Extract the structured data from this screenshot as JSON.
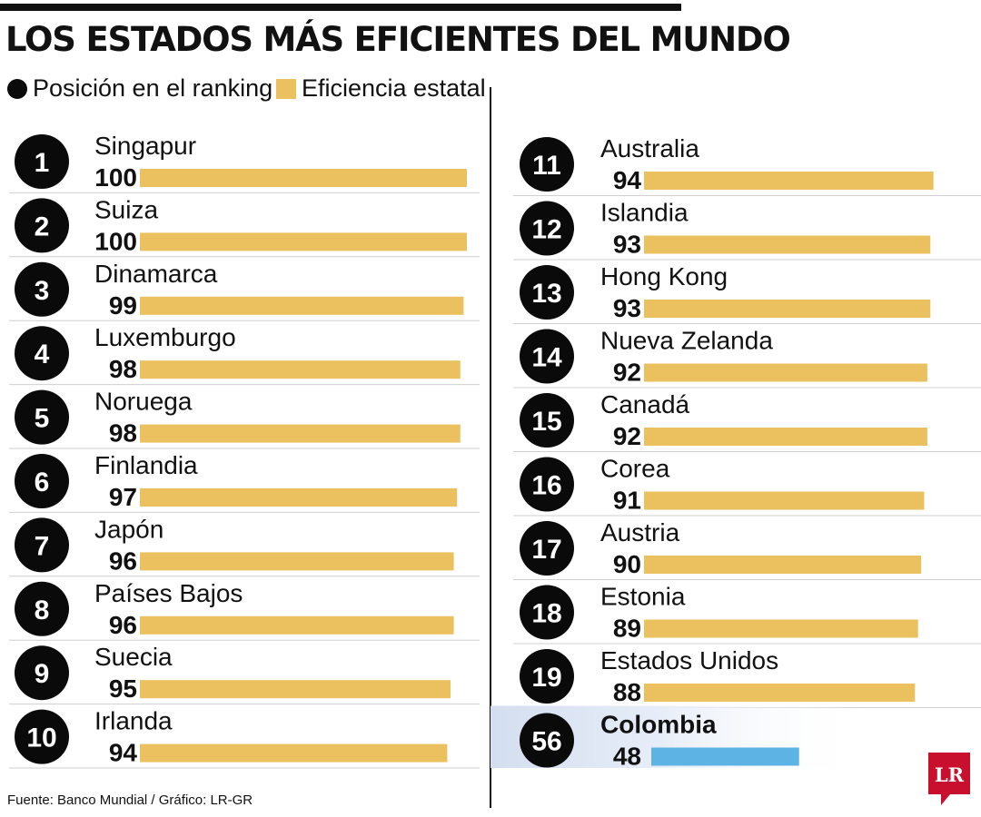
{
  "title": "LOS ESTADOS MÁS EFICIENTES DEL MUNDO",
  "legend": {
    "rank_label": "Posición en el ranking",
    "efficiency_label": "Eficiencia estatal"
  },
  "colors": {
    "bar": "#ebc15f",
    "highlight_bar": "#5db4e4",
    "badge": "#0a0a0a",
    "badge_text": "#ffffff",
    "separator": "#cfcfcf",
    "highlight_bg": "#d3def0",
    "logo": "#c8102e"
  },
  "chart_data": {
    "type": "bar",
    "orientation": "horizontal",
    "title": "LOS ESTADOS MÁS EFICIENTES DEL MUNDO",
    "series_label": "Eficiencia estatal",
    "xlim": [
      0,
      100
    ],
    "items": [
      {
        "rank": "1",
        "country": "Singapur",
        "value": 100
      },
      {
        "rank": "2",
        "country": "Suiza",
        "value": 100
      },
      {
        "rank": "3",
        "country": "Dinamarca",
        "value": 99
      },
      {
        "rank": "4",
        "country": "Luxemburgo",
        "value": 98
      },
      {
        "rank": "5",
        "country": "Noruega",
        "value": 98
      },
      {
        "rank": "6",
        "country": "Finlandia",
        "value": 97
      },
      {
        "rank": "7",
        "country": "Japón",
        "value": 96
      },
      {
        "rank": "8",
        "country": "Países Bajos",
        "value": 96
      },
      {
        "rank": "9",
        "country": "Suecia",
        "value": 95
      },
      {
        "rank": "10",
        "country": "Irlanda",
        "value": 94
      },
      {
        "rank": "11",
        "country": "Australia",
        "value": 94
      },
      {
        "rank": "12",
        "country": "Islandia",
        "value": 93
      },
      {
        "rank": "13",
        "country": "Hong Kong",
        "value": 93
      },
      {
        "rank": "14",
        "country": "Nueva Zelanda",
        "value": 92
      },
      {
        "rank": "15",
        "country": "Canadá",
        "value": 92
      },
      {
        "rank": "16",
        "country": "Corea",
        "value": 91
      },
      {
        "rank": "17",
        "country": "Austria",
        "value": 90
      },
      {
        "rank": "18",
        "country": "Estonia",
        "value": 89
      },
      {
        "rank": "19",
        "country": "Estados Unidos",
        "value": 88
      },
      {
        "rank": "56",
        "country": "Colombia",
        "value": 48,
        "highlight": true
      }
    ]
  },
  "source": "Fuente: Banco Mundial / Gráfico: LR-GR",
  "logo_text": "LR"
}
